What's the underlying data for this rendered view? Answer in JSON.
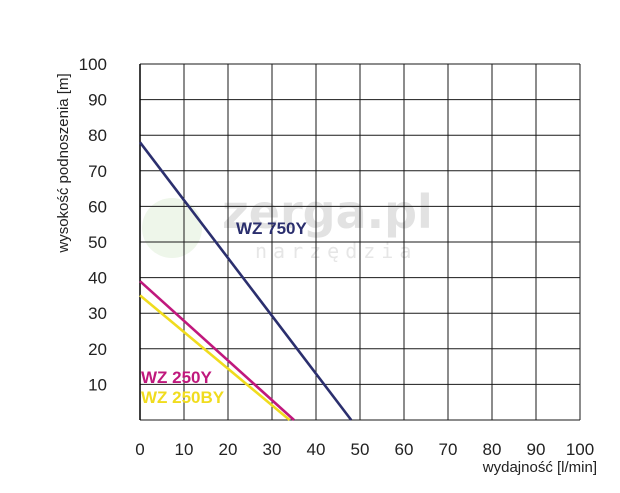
{
  "chart_data": {
    "type": "line",
    "xlabel": "wydajność [l/min]",
    "ylabel": "wysokość podnoszenia [m]",
    "xlim": [
      0,
      100
    ],
    "ylim": [
      0,
      100
    ],
    "x_ticks": [
      "0",
      "10",
      "20",
      "30",
      "40",
      "50",
      "60",
      "70",
      "80",
      "90",
      "100"
    ],
    "y_ticks": [
      "10",
      "20",
      "30",
      "40",
      "50",
      "60",
      "70",
      "80",
      "90",
      "100"
    ],
    "grid": true,
    "series": [
      {
        "name": "WZ 750Y",
        "color": "#2b2f6e",
        "x": [
          0,
          48
        ],
        "y": [
          78,
          0
        ]
      },
      {
        "name": "WZ 250Y",
        "color": "#c0187d",
        "x": [
          0,
          35
        ],
        "y": [
          39,
          0
        ]
      },
      {
        "name": "WZ 250BY",
        "color": "#f0dc1e",
        "x": [
          0,
          34
        ],
        "y": [
          35,
          0
        ]
      }
    ]
  },
  "watermark": {
    "brand": "zerga.pl",
    "tagline": "narzędzia"
  }
}
